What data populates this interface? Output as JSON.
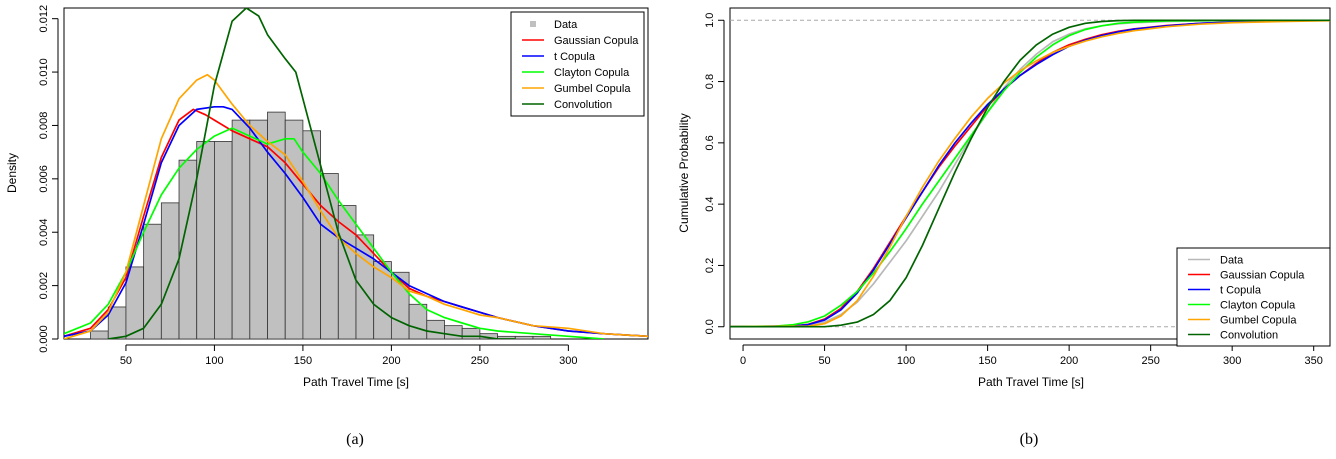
{
  "chart_data": [
    {
      "type": "histogram",
      "xlabel": "Path Travel Time [s]",
      "ylabel": "Density",
      "caption": "(a)",
      "xlim": [
        15,
        345
      ],
      "ylim": [
        0,
        0.0124
      ],
      "xticks": [
        50,
        100,
        150,
        200,
        250,
        300
      ],
      "xtick_labels": [
        "50",
        "100",
        "150",
        "200",
        "250",
        "300"
      ],
      "yticks": [
        0,
        0.002,
        0.004,
        0.006,
        0.008,
        0.01,
        0.012
      ],
      "ytick_labels": [
        "0.000",
        "0.002",
        "0.004",
        "0.006",
        "0.008",
        "0.010",
        "0.012"
      ],
      "legend_position": "top-right",
      "legend": [
        "Data",
        "Gaussian Copula",
        "t Copula",
        "Clayton Copula",
        "Gumbel Copula",
        "Convolution"
      ],
      "histogram": {
        "name": "Data",
        "color": "#c0c0c0",
        "bin_width": 10,
        "bin_starts": [
          30,
          40,
          50,
          60,
          70,
          80,
          90,
          100,
          110,
          120,
          130,
          140,
          150,
          160,
          170,
          180,
          190,
          200,
          210,
          220,
          230,
          240,
          250,
          260,
          270,
          280
        ],
        "density": [
          0.0003,
          0.0012,
          0.0027,
          0.0043,
          0.0051,
          0.0067,
          0.0074,
          0.0074,
          0.0082,
          0.0082,
          0.0085,
          0.0082,
          0.0078,
          0.0062,
          0.005,
          0.0039,
          0.0029,
          0.0025,
          0.0013,
          0.0007,
          0.0005,
          0.0004,
          0.0002,
          0.0001,
          0.0001,
          0.0001
        ]
      },
      "series": [
        {
          "name": "Gaussian Copula",
          "color": "#ff0000",
          "x": [
            15,
            30,
            40,
            50,
            60,
            70,
            80,
            88,
            95,
            100,
            110,
            120,
            130,
            140,
            150,
            160,
            170,
            180,
            190,
            200,
            210,
            220,
            230,
            240,
            250,
            260,
            280,
            300,
            320,
            345
          ],
          "y": [
            0.0001,
            0.0004,
            0.0011,
            0.0023,
            0.0046,
            0.0068,
            0.0082,
            0.0086,
            0.0084,
            0.0082,
            0.0078,
            0.0075,
            0.0072,
            0.0066,
            0.0058,
            0.005,
            0.0044,
            0.0039,
            0.0032,
            0.0025,
            0.0019,
            0.0016,
            0.0014,
            0.0012,
            0.001,
            0.0008,
            0.0005,
            0.0003,
            0.0002,
            0.0001
          ]
        },
        {
          "name": "t Copula",
          "color": "#0000ff",
          "x": [
            15,
            30,
            40,
            50,
            60,
            70,
            80,
            90,
            100,
            105,
            110,
            120,
            130,
            140,
            150,
            160,
            170,
            180,
            190,
            200,
            210,
            220,
            230,
            240,
            250,
            260,
            280,
            300,
            320,
            345
          ],
          "y": [
            0.0001,
            0.0003,
            0.0009,
            0.0021,
            0.0043,
            0.0066,
            0.008,
            0.0086,
            0.0087,
            0.0087,
            0.0086,
            0.0079,
            0.007,
            0.0062,
            0.0053,
            0.0043,
            0.0038,
            0.0034,
            0.003,
            0.0025,
            0.002,
            0.0017,
            0.0014,
            0.0012,
            0.001,
            0.0008,
            0.0005,
            0.0003,
            0.0002,
            0.0001
          ]
        },
        {
          "name": "Clayton Copula",
          "color": "#00ff00",
          "x": [
            15,
            30,
            40,
            50,
            60,
            70,
            80,
            90,
            100,
            110,
            120,
            130,
            140,
            145,
            150,
            160,
            170,
            180,
            190,
            200,
            210,
            220,
            230,
            240,
            250,
            260,
            280,
            300,
            320
          ],
          "y": [
            0.0002,
            0.0006,
            0.0013,
            0.0025,
            0.004,
            0.0054,
            0.0064,
            0.0071,
            0.0076,
            0.0079,
            0.0076,
            0.0073,
            0.0075,
            0.0075,
            0.007,
            0.0062,
            0.0052,
            0.0043,
            0.0034,
            0.0025,
            0.0017,
            0.0011,
            0.0008,
            0.0006,
            0.0004,
            0.0003,
            0.0002,
            0.0001,
            0.0
          ]
        },
        {
          "name": "Gumbel Copula",
          "color": "#ffa500",
          "x": [
            15,
            30,
            40,
            50,
            60,
            70,
            80,
            90,
            96,
            100,
            110,
            120,
            130,
            140,
            150,
            160,
            170,
            180,
            190,
            200,
            210,
            220,
            230,
            240,
            250,
            260,
            280,
            300,
            320,
            345
          ],
          "y": [
            0.0,
            0.0003,
            0.001,
            0.0025,
            0.005,
            0.0075,
            0.009,
            0.0097,
            0.0099,
            0.0097,
            0.0088,
            0.008,
            0.0074,
            0.0069,
            0.0059,
            0.0048,
            0.0038,
            0.0032,
            0.0027,
            0.0023,
            0.0018,
            0.0016,
            0.0013,
            0.0011,
            0.0009,
            0.0008,
            0.0005,
            0.0004,
            0.0002,
            0.0001
          ]
        },
        {
          "name": "Convolution",
          "color": "#006400",
          "x": [
            40,
            50,
            60,
            70,
            80,
            90,
            100,
            110,
            118,
            125,
            130,
            140,
            146,
            150,
            160,
            170,
            180,
            190,
            200,
            210,
            220,
            230,
            240,
            250,
            260,
            270
          ],
          "y": [
            0.0,
            0.0001,
            0.0004,
            0.0013,
            0.003,
            0.006,
            0.0095,
            0.0119,
            0.0124,
            0.0121,
            0.0114,
            0.0105,
            0.01,
            0.009,
            0.0065,
            0.004,
            0.0022,
            0.0013,
            0.0008,
            0.0005,
            0.0003,
            0.0002,
            0.0001,
            0.0001,
            0.0,
            0.0
          ]
        }
      ]
    },
    {
      "type": "line",
      "xlabel": "Path Travel Time [s]",
      "ylabel": "Cumulative Probability",
      "caption": "(b)",
      "xlim": [
        -8,
        360
      ],
      "ylim": [
        -0.04,
        1.04
      ],
      "xticks": [
        0,
        50,
        100,
        150,
        200,
        250,
        300,
        350
      ],
      "xtick_labels": [
        "0",
        "50",
        "100",
        "150",
        "200",
        "250",
        "300",
        "350"
      ],
      "yticks": [
        0,
        0.2,
        0.4,
        0.6,
        0.8,
        1.0
      ],
      "ytick_labels": [
        "0.0",
        "0.2",
        "0.4",
        "0.6",
        "0.8",
        "1.0"
      ],
      "reference_lines_y": [
        0,
        1
      ],
      "legend_position": "bottom-right",
      "legend": [
        "Data",
        "Gaussian Copula",
        "t Copula",
        "Clayton Copula",
        "Gumbel Copula",
        "Convolution"
      ],
      "series": [
        {
          "name": "Data",
          "color": "#b8b8b8",
          "x": [
            -8,
            30,
            40,
            50,
            60,
            70,
            80,
            90,
            100,
            110,
            120,
            130,
            140,
            150,
            160,
            170,
            180,
            190,
            200,
            210,
            220,
            230,
            240,
            260,
            280,
            300,
            330,
            360
          ],
          "y": [
            0,
            0.001,
            0.004,
            0.015,
            0.04,
            0.08,
            0.14,
            0.21,
            0.28,
            0.36,
            0.44,
            0.53,
            0.62,
            0.7,
            0.78,
            0.84,
            0.89,
            0.93,
            0.955,
            0.972,
            0.982,
            0.988,
            0.992,
            0.996,
            0.998,
            0.999,
            1.0,
            1.0
          ]
        },
        {
          "name": "Gaussian Copula",
          "color": "#ff0000",
          "x": [
            -8,
            30,
            40,
            50,
            60,
            70,
            80,
            90,
            100,
            110,
            120,
            130,
            140,
            150,
            160,
            170,
            180,
            190,
            200,
            210,
            220,
            230,
            240,
            260,
            280,
            300,
            330,
            360
          ],
          "y": [
            0,
            0.002,
            0.008,
            0.025,
            0.06,
            0.115,
            0.19,
            0.275,
            0.36,
            0.44,
            0.52,
            0.59,
            0.655,
            0.72,
            0.775,
            0.82,
            0.86,
            0.895,
            0.92,
            0.938,
            0.953,
            0.964,
            0.972,
            0.983,
            0.99,
            0.994,
            0.998,
            1.0
          ]
        },
        {
          "name": "t Copula",
          "color": "#0000ff",
          "x": [
            -8,
            30,
            40,
            50,
            60,
            70,
            80,
            90,
            100,
            110,
            120,
            130,
            140,
            150,
            160,
            170,
            180,
            190,
            200,
            210,
            220,
            230,
            240,
            260,
            280,
            300,
            330,
            360
          ],
          "y": [
            0,
            0.002,
            0.007,
            0.022,
            0.055,
            0.11,
            0.185,
            0.27,
            0.355,
            0.44,
            0.525,
            0.6,
            0.665,
            0.725,
            0.775,
            0.82,
            0.856,
            0.888,
            0.915,
            0.935,
            0.95,
            0.962,
            0.971,
            0.982,
            0.99,
            0.994,
            0.998,
            1.0
          ]
        },
        {
          "name": "Clayton Copula",
          "color": "#00ff00",
          "x": [
            -8,
            20,
            30,
            40,
            50,
            60,
            70,
            80,
            90,
            100,
            110,
            120,
            130,
            140,
            150,
            160,
            170,
            180,
            190,
            200,
            210,
            220,
            230,
            240,
            260,
            280,
            300,
            330,
            360
          ],
          "y": [
            0,
            0.002,
            0.006,
            0.016,
            0.035,
            0.07,
            0.115,
            0.175,
            0.245,
            0.32,
            0.4,
            0.475,
            0.55,
            0.625,
            0.7,
            0.77,
            0.83,
            0.88,
            0.92,
            0.95,
            0.97,
            0.982,
            0.99,
            0.994,
            0.998,
            0.999,
            1.0,
            1.0,
            1.0
          ]
        },
        {
          "name": "Gumbel Copula",
          "color": "#ffa500",
          "x": [
            -8,
            40,
            50,
            60,
            70,
            80,
            90,
            100,
            110,
            120,
            130,
            140,
            150,
            160,
            170,
            180,
            190,
            200,
            210,
            220,
            230,
            240,
            260,
            280,
            300,
            330,
            360
          ],
          "y": [
            0,
            0.002,
            0.01,
            0.035,
            0.085,
            0.165,
            0.26,
            0.36,
            0.455,
            0.54,
            0.615,
            0.685,
            0.745,
            0.795,
            0.835,
            0.868,
            0.895,
            0.915,
            0.932,
            0.946,
            0.957,
            0.966,
            0.979,
            0.987,
            0.992,
            0.996,
            0.999
          ]
        },
        {
          "name": "Convolution",
          "color": "#006400",
          "x": [
            -8,
            50,
            60,
            70,
            80,
            90,
            100,
            110,
            120,
            130,
            140,
            150,
            160,
            170,
            180,
            190,
            200,
            210,
            220,
            230,
            240,
            260,
            300,
            360
          ],
          "y": [
            0,
            0.0,
            0.005,
            0.015,
            0.04,
            0.085,
            0.16,
            0.265,
            0.385,
            0.505,
            0.615,
            0.715,
            0.8,
            0.87,
            0.92,
            0.955,
            0.977,
            0.99,
            0.996,
            0.999,
            1.0,
            1.0,
            1.0,
            1.0
          ]
        }
      ]
    }
  ]
}
